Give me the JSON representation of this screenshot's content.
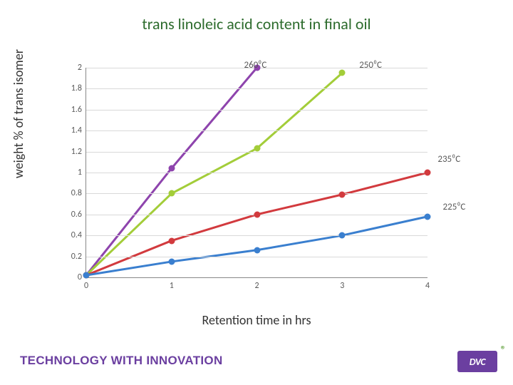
{
  "title": "trans linoleic acid content in final oil",
  "ylabel": "weight % of trans isomer",
  "xlabel": "Retention time in hrs",
  "chart": {
    "type": "line",
    "background_color": "#ffffff",
    "grid_color": "#d9d9d9",
    "axis_color": "#888888",
    "tick_fontsize": 12,
    "tick_color": "#595959",
    "title_color": "#2c6b2c",
    "title_fontsize": 22,
    "label_fontsize": 18,
    "xlim": [
      0,
      4
    ],
    "ylim": [
      0,
      2
    ],
    "xticks": [
      0,
      1,
      2,
      3,
      4
    ],
    "yticks": [
      0,
      0.2,
      0.4,
      0.6,
      0.8,
      1,
      1.2,
      1.4,
      1.6,
      1.8,
      2
    ],
    "line_width": 3,
    "marker_size": 9,
    "marker_style": "circle",
    "series": [
      {
        "name": "260⁰C",
        "color": "#8e44ad",
        "label_xy": [
          1.85,
          2.02
        ],
        "x": [
          0,
          1,
          2
        ],
        "y": [
          0.02,
          1.04,
          2.0
        ]
      },
      {
        "name": "250⁰C",
        "color": "#a3cd39",
        "label_xy": [
          3.2,
          2.02
        ],
        "x": [
          0,
          1,
          2,
          3
        ],
        "y": [
          0.02,
          0.8,
          1.23,
          1.95
        ]
      },
      {
        "name": "235⁰C",
        "color": "#d23a3e",
        "label_xy": [
          4.12,
          1.12
        ],
        "x": [
          0,
          1,
          2,
          3,
          4
        ],
        "y": [
          0.02,
          0.35,
          0.6,
          0.79,
          1.0
        ]
      },
      {
        "name": "225⁰C",
        "color": "#3a7fcf",
        "label_xy": [
          4.18,
          0.67
        ],
        "x": [
          0,
          1,
          2,
          3,
          4
        ],
        "y": [
          0.02,
          0.15,
          0.26,
          0.4,
          0.58
        ]
      }
    ]
  },
  "footer": {
    "tagline": "TECHNOLOGY WITH INNOVATION",
    "tagline_color": "#6b3fa0",
    "logo_text": "DVC",
    "logo_bg": "#6b3fa0",
    "logo_reg": "®",
    "logo_reg_color": "#5fa03a"
  }
}
